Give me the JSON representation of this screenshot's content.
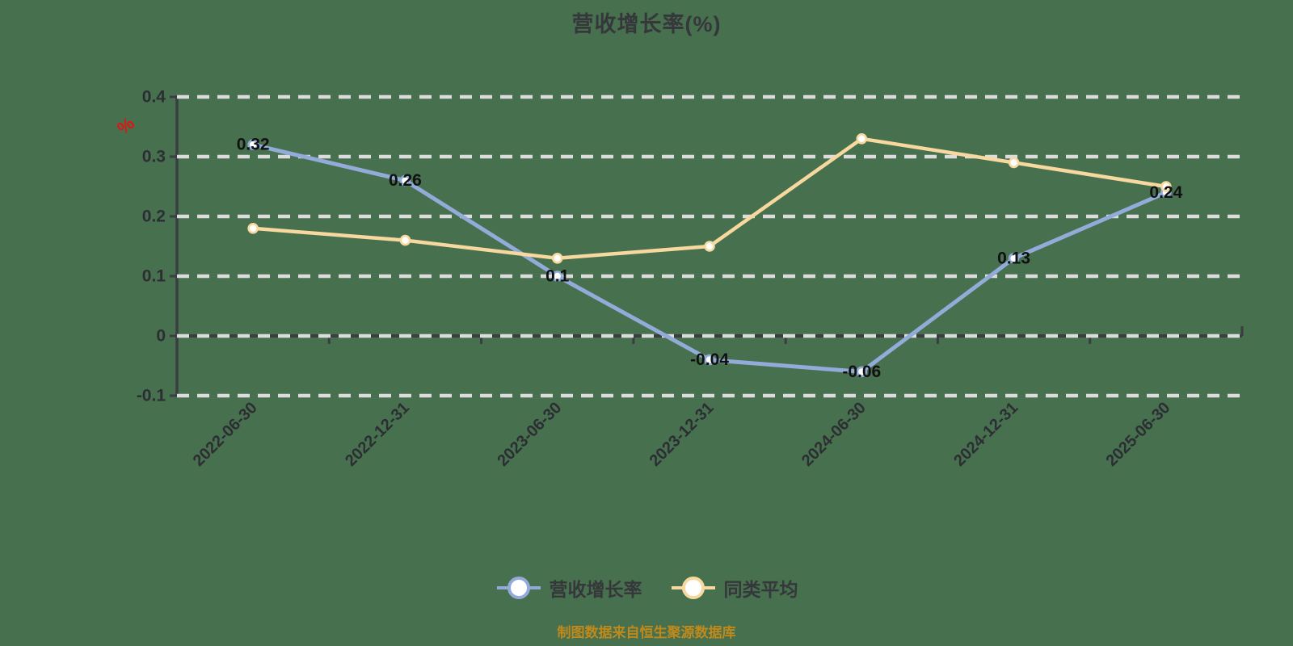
{
  "header": {
    "title": "营收增长率(%)"
  },
  "y_axis": {
    "unit_label": "%",
    "tick_labels": [
      "0.4",
      "0.3",
      "0.2",
      "0.1",
      "0",
      "-0.1"
    ]
  },
  "footer": {
    "source_note": "制图数据来自恒生聚源数据库"
  },
  "legend": {
    "items": [
      {
        "label": "营收增长率",
        "color": "#92ABD8"
      },
      {
        "label": "同类平均",
        "color": "#F7D99F"
      }
    ]
  },
  "chart_data": {
    "type": "line",
    "title": "营收增长率(%)",
    "categories": [
      "2022-06-30",
      "2022-12-31",
      "2023-06-30",
      "2023-12-31",
      "2024-06-30",
      "2024-12-31",
      "2025-06-30"
    ],
    "series": [
      {
        "name": "营收增长率",
        "color": "#92ABD8",
        "values": [
          0.32,
          0.26,
          0.1,
          -0.04,
          -0.06,
          0.13,
          0.24
        ],
        "point_labels": [
          "0.32",
          "0.26",
          "0.1",
          "-0.04",
          "-0.06",
          "0.13",
          "0.24"
        ]
      },
      {
        "name": "同类平均",
        "color": "#F7D99F",
        "values": [
          0.18,
          0.16,
          0.13,
          0.15,
          0.33,
          0.29,
          0.25
        ],
        "point_labels": []
      }
    ],
    "ylim": [
      -0.1,
      0.4
    ],
    "yticks": [
      0.4,
      0.3,
      0.2,
      0.1,
      0,
      -0.1
    ],
    "grid": "horizontal-dashed",
    "legend_position": "bottom",
    "x_axis_at_value": 0
  },
  "colors": {
    "background": "#47704F",
    "grid": "#DCDCDC",
    "axis": "#3A3D42",
    "tick_text": "#2C2E33",
    "point_label": "#111111",
    "title_text": "#35373B",
    "footer_text": "#BF8A1B",
    "unit_label": "#E01414",
    "marker_fill": "#FFFFFF"
  }
}
